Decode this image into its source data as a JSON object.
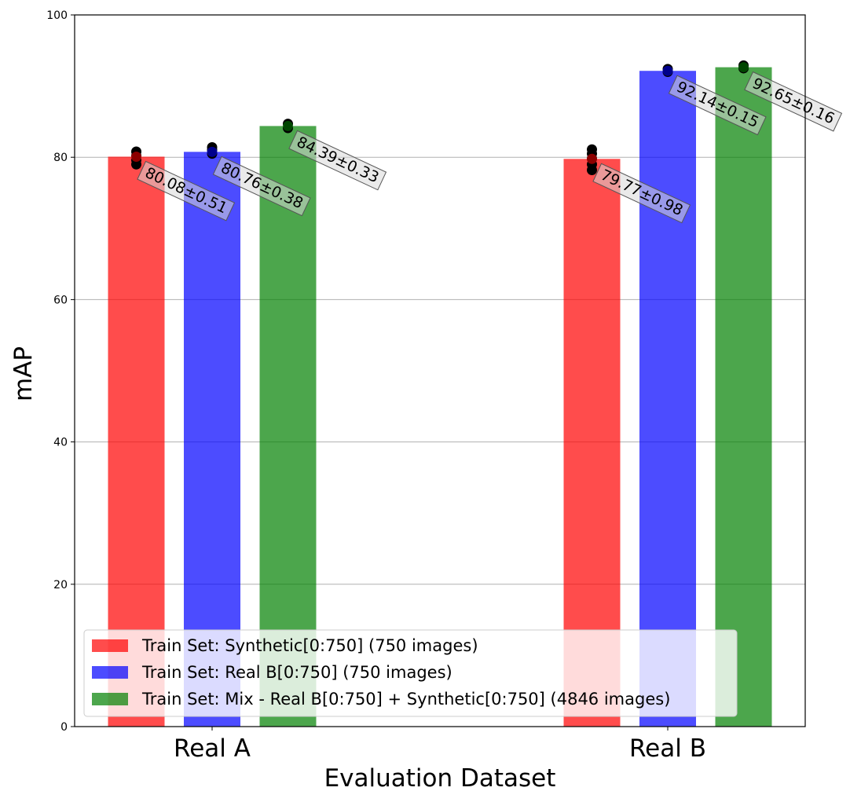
{
  "chart_data": {
    "type": "bar",
    "title": "",
    "xlabel": "Evaluation Dataset",
    "ylabel": "mAP",
    "ylim": [
      0,
      100
    ],
    "yticks": [
      0,
      20,
      40,
      60,
      80,
      100
    ],
    "grid": "y",
    "categories": [
      "Real A",
      "Real B"
    ],
    "legend_position": "lower-left",
    "series": [
      {
        "name": "Train Set: Synthetic[0:750] (750 images)",
        "color": "#ff0000",
        "values": [
          80.08,
          79.77
        ],
        "labels": [
          "80.08±0.51",
          "79.77±0.98"
        ],
        "runs": [
          [
            79.0,
            79.6,
            80.2,
            80.8
          ],
          [
            78.2,
            79.0,
            79.8,
            80.5,
            81.1
          ]
        ]
      },
      {
        "name": "Train Set: Real B[0:750] (750 images)",
        "color": "#0000ff",
        "values": [
          80.76,
          92.14
        ],
        "labels": [
          "80.76±0.38",
          "92.14±0.15"
        ],
        "runs": [
          [
            80.5,
            81.0,
            81.4
          ],
          [
            92.0,
            92.4
          ]
        ]
      },
      {
        "name": "Train Set: Mix - Real B[0:750] + Synthetic[0:750] (4846 images)",
        "color": "#008000",
        "values": [
          84.39,
          92.65
        ],
        "labels": [
          "84.39±0.33",
          "92.65±0.16"
        ],
        "runs": [
          [
            84.1,
            84.7
          ],
          [
            92.5,
            92.9
          ]
        ]
      }
    ]
  }
}
